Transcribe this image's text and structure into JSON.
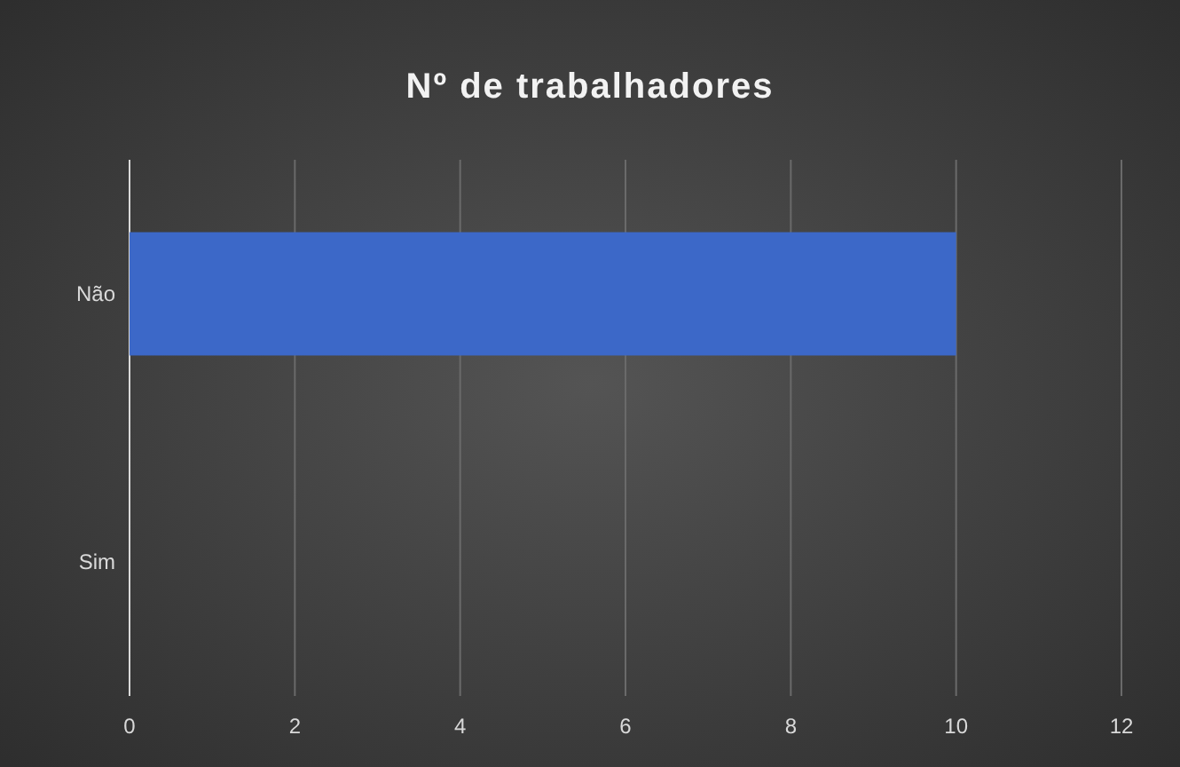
{
  "chart_data": {
    "type": "bar",
    "orientation": "horizontal",
    "title": "Nº de trabalhadores",
    "categories": [
      "Não",
      "Sim"
    ],
    "values": [
      10,
      0
    ],
    "color": "#3c68c8",
    "xlim": [
      0,
      12
    ],
    "xticks": [
      0,
      2,
      4,
      6,
      8,
      10,
      12
    ],
    "grid": "x"
  }
}
